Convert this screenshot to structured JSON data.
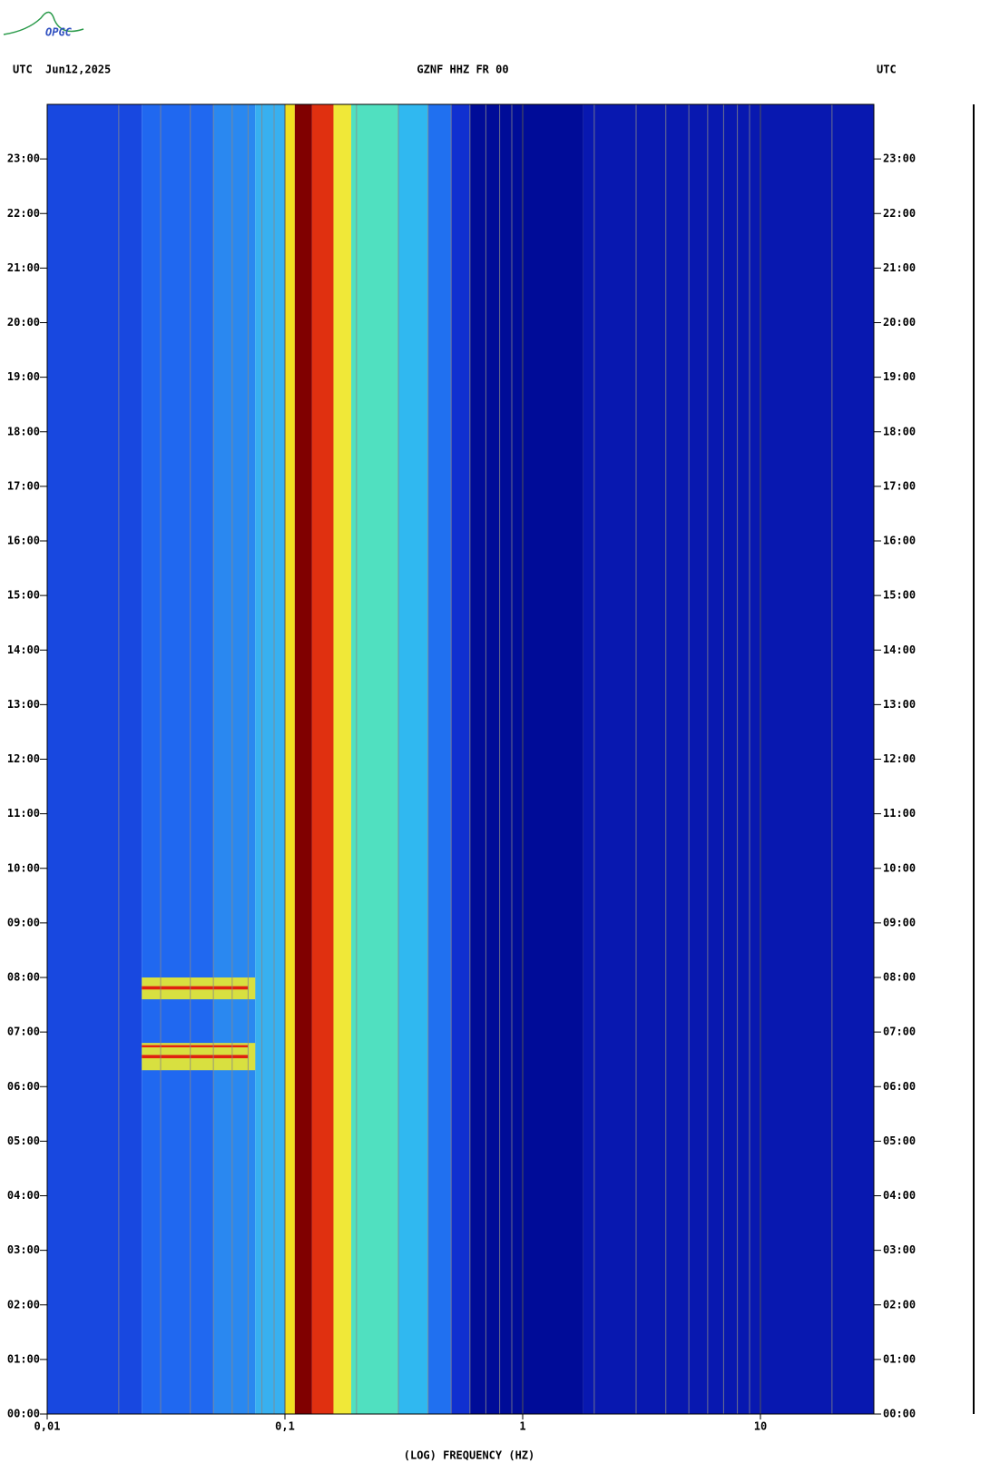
{
  "chart_data": {
    "type": "spectrogram",
    "title": "GZNF HHZ FR 00",
    "date": "Jun12,2025",
    "time_zone": "UTC",
    "logo": "OPGC",
    "xlabel": "(LOG) FREQUENCY (HZ)",
    "xscale": "log",
    "xlim": [
      0.01,
      30
    ],
    "xticks": [
      {
        "value": 0.01,
        "label": "0,01"
      },
      {
        "value": 0.1,
        "label": "0,1"
      },
      1,
      10
    ],
    "ylim": [
      0,
      24
    ],
    "yticks": [
      {
        "value": 0,
        "label": "00:00"
      },
      {
        "value": 1,
        "label": "01:00"
      },
      {
        "value": 2,
        "label": "02:00"
      },
      {
        "value": 3,
        "label": "03:00"
      },
      {
        "value": 4,
        "label": "04:00"
      },
      {
        "value": 5,
        "label": "05:00"
      },
      {
        "value": 6,
        "label": "06:00"
      },
      {
        "value": 7,
        "label": "07:00"
      },
      {
        "value": 8,
        "label": "08:00"
      },
      {
        "value": 9,
        "label": "09:00"
      },
      {
        "value": 10,
        "label": "10:00"
      },
      {
        "value": 11,
        "label": "11:00"
      },
      {
        "value": 12,
        "label": "12:00"
      },
      {
        "value": 13,
        "label": "13:00"
      },
      {
        "value": 14,
        "label": "14:00"
      },
      {
        "value": 15,
        "label": "15:00"
      },
      {
        "value": 16,
        "label": "16:00"
      },
      {
        "value": 17,
        "label": "17:00"
      },
      {
        "value": 18,
        "label": "18:00"
      },
      {
        "value": 19,
        "label": "19:00"
      },
      {
        "value": 20,
        "label": "20:00"
      },
      {
        "value": 21,
        "label": "21:00"
      },
      {
        "value": 22,
        "label": "22:00"
      },
      {
        "value": 23,
        "label": "23:00"
      }
    ],
    "grid": true,
    "x_edges": [
      0.01,
      0.025,
      0.05,
      0.075,
      0.1,
      0.11,
      0.13,
      0.16,
      0.19,
      0.3,
      0.4,
      0.5,
      0.6,
      1.8,
      30
    ],
    "band_colors": [
      "#1848e0",
      "#2068f0",
      "#2a88f0",
      "#38b0f0",
      "#f0e020",
      "#800000",
      "#e03010",
      "#f0e838",
      "#50e0c0",
      "#30b8f0",
      "#2070f0",
      "#1030d0",
      "#000c98",
      "#0818b0"
    ],
    "events": [
      {
        "x": [
          0.025,
          0.075
        ],
        "y": [
          7.6,
          8.0
        ],
        "color": "#d8e040"
      },
      {
        "x": [
          0.025,
          0.075
        ],
        "y": [
          6.3,
          6.8
        ],
        "color": "#d8e040"
      },
      {
        "x": [
          0.025,
          0.07
        ],
        "y": [
          7.78,
          7.84
        ],
        "color": "#e02010"
      },
      {
        "x": [
          0.025,
          0.07
        ],
        "y": [
          6.52,
          6.58
        ],
        "color": "#e02010"
      },
      {
        "x": [
          0.025,
          0.07
        ],
        "y": [
          6.72,
          6.76
        ],
        "color": "#e02010"
      }
    ]
  }
}
